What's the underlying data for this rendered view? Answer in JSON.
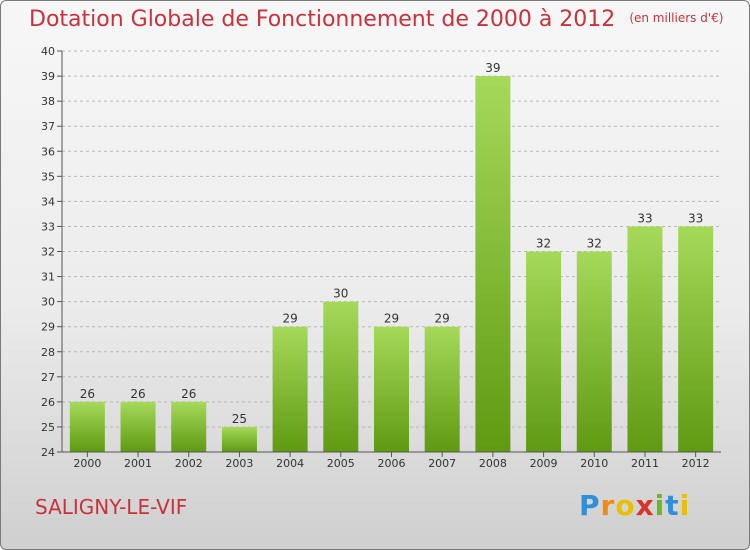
{
  "header": {
    "title": "Dotation Globale de Fonctionnement de 2000 à 2012",
    "unit": "(en milliers d'€)"
  },
  "footer": {
    "commune": "SALIGNY-LE-VIF",
    "logo_text": "Proxiti"
  },
  "colors": {
    "title": "#c8323c",
    "bar_light": "#a6d95a",
    "bar_dark": "#5f9a12"
  },
  "chart_data": {
    "type": "bar",
    "title": "Dotation Globale de Fonctionnement de 2000 à 2012",
    "subtitle": "(en milliers d'€)",
    "categories": [
      "2000",
      "2001",
      "2002",
      "2003",
      "2004",
      "2005",
      "2006",
      "2007",
      "2008",
      "2009",
      "2010",
      "2011",
      "2012"
    ],
    "values": [
      26,
      26,
      26,
      25,
      29,
      30,
      29,
      29,
      39,
      32,
      32,
      33,
      33
    ],
    "ylim": [
      24,
      40
    ],
    "yticks": [
      24,
      25,
      26,
      27,
      28,
      29,
      30,
      31,
      32,
      33,
      34,
      35,
      36,
      37,
      38,
      39,
      40
    ],
    "grid": "horizontal dashed",
    "data_labels": true
  }
}
